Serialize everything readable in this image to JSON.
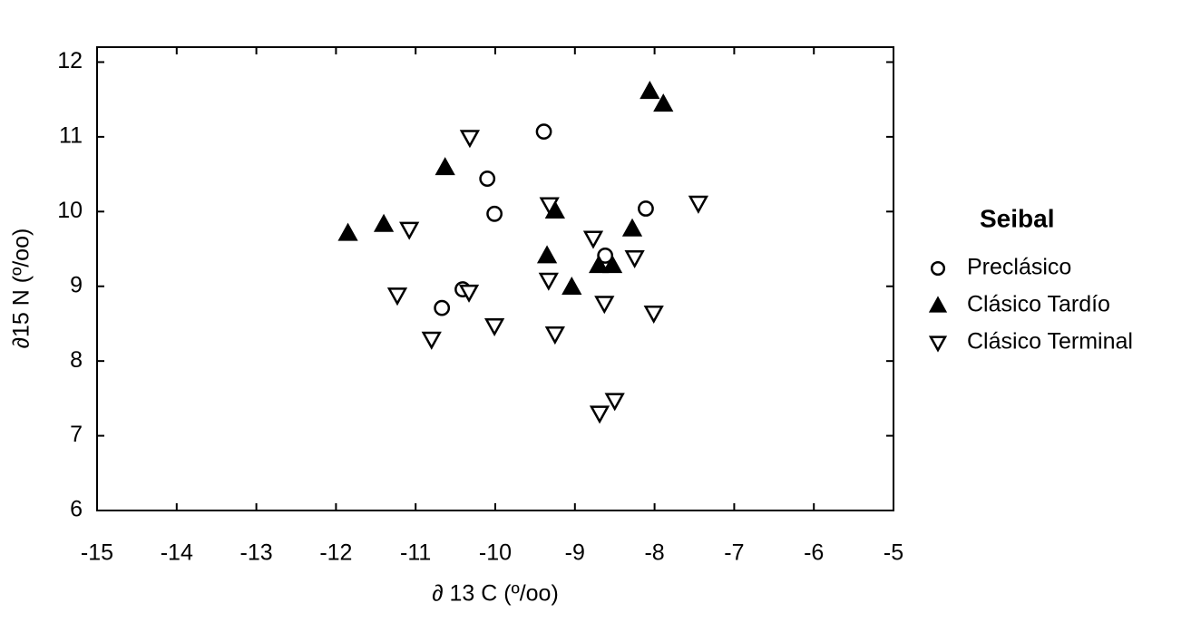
{
  "chart_data": {
    "type": "scatter",
    "x_label": "∂ 13 C (º/oo)",
    "y_label": "∂15 N (º/oo)",
    "legend_title": "Seibal",
    "legend_position": "right",
    "xlim": [
      -15,
      -5
    ],
    "xticks": [
      -15,
      -14,
      -13,
      -12,
      -11,
      -10,
      -9,
      -8,
      -7,
      -6,
      -5
    ],
    "ylim": [
      6,
      12.2
    ],
    "yticks": [
      6,
      7,
      8,
      9,
      10,
      11,
      12
    ],
    "series": [
      {
        "name": "Preclásico",
        "color": "#000000",
        "marker": "circle",
        "filled": false,
        "x": [
          -9.39,
          -10.1,
          -10.01,
          -8.11,
          -8.62,
          -10.41,
          -10.67
        ],
        "values": [
          11.07,
          10.44,
          9.97,
          10.04,
          9.41,
          8.96,
          8.71
        ]
      },
      {
        "name": "Clásico Tardío",
        "color": "#000000",
        "marker": "triangle",
        "filled": true,
        "x": [
          -11.85,
          -11.4,
          -10.63,
          -9.25,
          -9.35,
          -9.04,
          -8.7,
          -8.53,
          -8.28,
          -8.06,
          -7.89
        ],
        "values": [
          9.71,
          9.83,
          10.59,
          10.01,
          9.41,
          8.99,
          9.28,
          9.28,
          9.77,
          11.61,
          11.44
        ]
      },
      {
        "name": "Clásico Terminal",
        "color": "#000000",
        "marker": "triangle-down",
        "filled": false,
        "x": [
          -10.32,
          -11.08,
          -11.23,
          -10.8,
          -10.33,
          -10.01,
          -9.32,
          -9.33,
          -9.25,
          -8.77,
          -8.63,
          -8.25,
          -8.01,
          -7.45,
          -8.69,
          -8.5
        ],
        "values": [
          10.99,
          9.76,
          8.88,
          8.29,
          8.92,
          8.47,
          10.09,
          9.08,
          8.36,
          9.64,
          8.77,
          9.38,
          8.64,
          10.11,
          7.3,
          7.47
        ]
      }
    ]
  }
}
